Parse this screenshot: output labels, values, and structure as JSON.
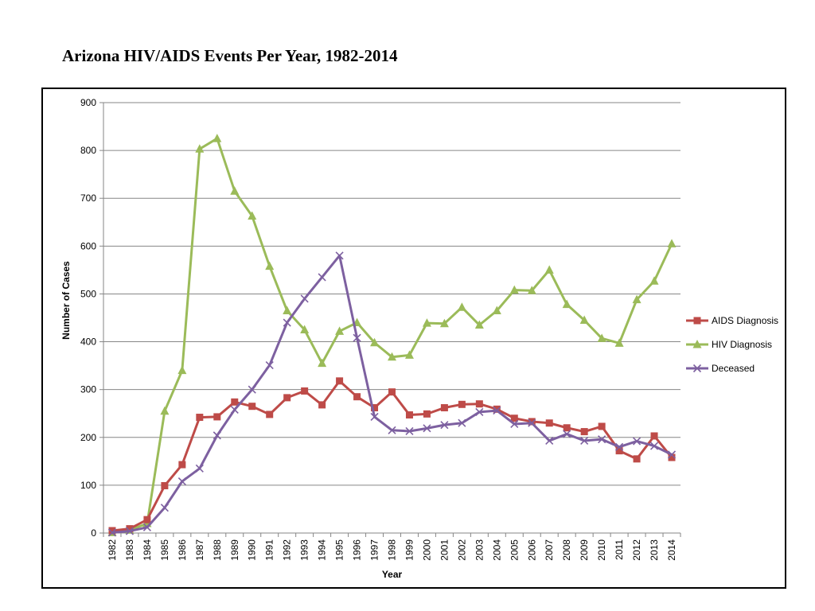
{
  "page": {
    "title": "Arizona HIV/AIDS Events Per Year, 1982-2014"
  },
  "chart_data": {
    "type": "line",
    "title": "",
    "xlabel": "Year",
    "ylabel": "Number of Cases",
    "ylim": [
      0,
      900
    ],
    "yticks": [
      "0",
      "100",
      "200",
      "300",
      "400",
      "500",
      "600",
      "700",
      "800",
      "900"
    ],
    "grid": true,
    "legend_position": "right",
    "categories": [
      "1982",
      "1983",
      "1984",
      "1985",
      "1986",
      "1987",
      "1988",
      "1989",
      "1990",
      "1991",
      "1992",
      "1993",
      "1994",
      "1995",
      "1996",
      "1997",
      "1998",
      "1999",
      "2000",
      "2001",
      "2002",
      "2003",
      "2004",
      "2005",
      "2006",
      "2007",
      "2008",
      "2009",
      "2010",
      "2011",
      "2012",
      "2013",
      "2014"
    ],
    "series": [
      {
        "name": "AIDS Diagnosis",
        "color": "#BE4B48",
        "marker": "square",
        "values": [
          5,
          9,
          28,
          99,
          143,
          242,
          243,
          274,
          265,
          248,
          283,
          297,
          268,
          318,
          285,
          262,
          295,
          247,
          249,
          262,
          269,
          270,
          259,
          240,
          233,
          230,
          220,
          212,
          223,
          172,
          155,
          203,
          158
        ]
      },
      {
        "name": "HIV Diagnosis",
        "color": "#9BBB59",
        "marker": "triangle",
        "values": [
          1,
          6,
          20,
          255,
          340,
          803,
          825,
          715,
          663,
          558,
          465,
          425,
          355,
          422,
          440,
          398,
          368,
          372,
          439,
          438,
          472,
          435,
          465,
          508,
          507,
          550,
          478,
          445,
          407,
          397,
          488,
          527,
          605
        ]
      },
      {
        "name": "Deceased",
        "color": "#7D60A0",
        "marker": "x",
        "values": [
          1,
          4,
          12,
          53,
          108,
          135,
          204,
          258,
          300,
          351,
          440,
          490,
          535,
          580,
          408,
          243,
          215,
          213,
          219,
          226,
          230,
          253,
          256,
          228,
          230,
          193,
          207,
          193,
          196,
          180,
          192,
          182,
          164
        ]
      }
    ]
  }
}
